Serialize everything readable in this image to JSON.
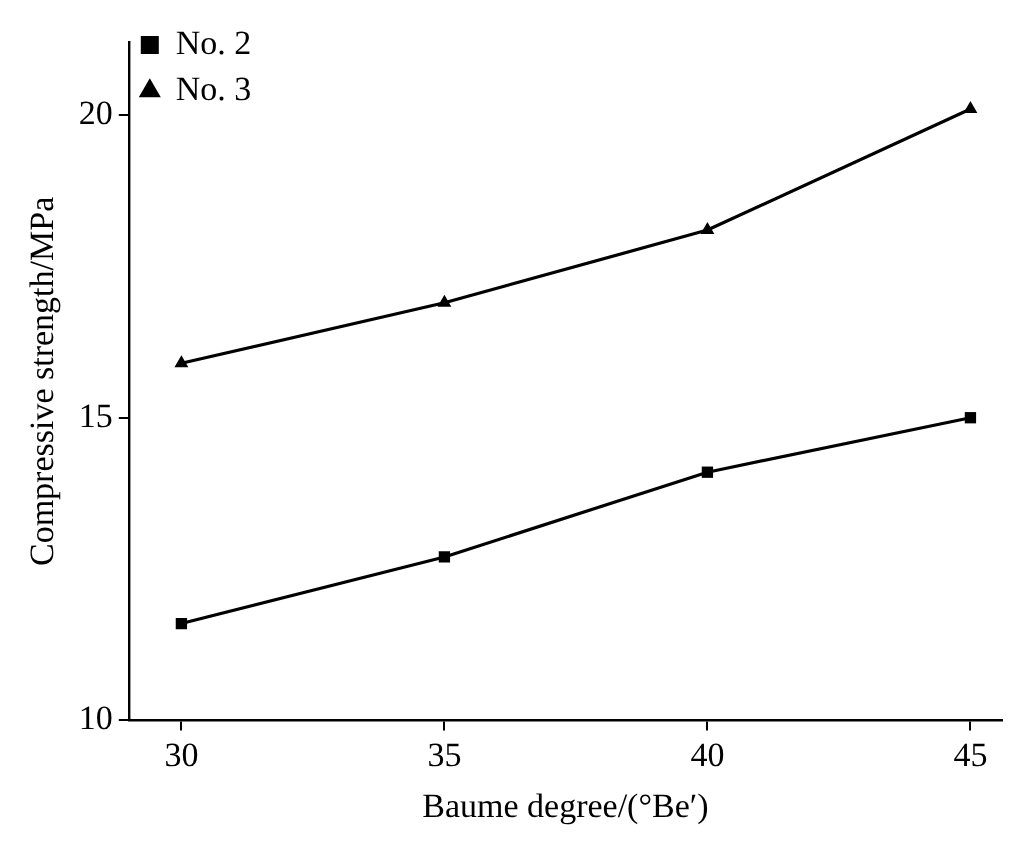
{
  "chart_data": {
    "type": "line",
    "xlabel": "Baume degree/(°Be′)",
    "ylabel": "Compressive strength/MPa",
    "x": [
      30,
      35,
      40,
      45
    ],
    "series": [
      {
        "name": "No. 2",
        "color": "#000000",
        "marker": "square",
        "values": [
          11.6,
          12.7,
          14.1,
          15.0
        ]
      },
      {
        "name": "No. 3",
        "color": "#000000",
        "marker": "triangle",
        "values": [
          15.9,
          16.9,
          18.1,
          20.1
        ]
      }
    ],
    "xlim": [
      29,
      45.6
    ],
    "xticks": [
      30,
      35,
      40,
      45
    ],
    "ylim": [
      10,
      21.2
    ],
    "yticks": [
      10,
      15,
      20
    ],
    "grid": false,
    "legend": "top left",
    "line_style": "solid"
  }
}
